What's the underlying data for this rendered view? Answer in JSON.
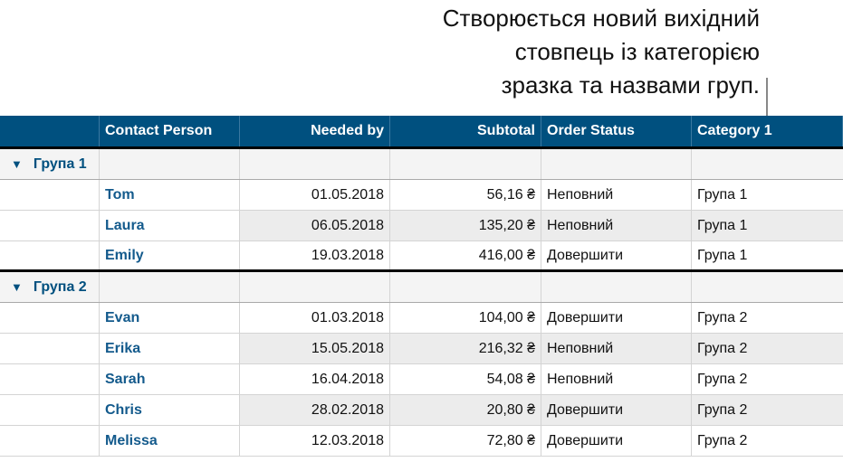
{
  "callout": {
    "lines": [
      "Створюється новий вихідний",
      "стовпець із категорією",
      "зразка та назвами груп."
    ]
  },
  "table": {
    "headers": [
      "",
      "Contact Person",
      "Needed by",
      "Subtotal",
      "Order Status",
      "Category 1"
    ],
    "groups": [
      {
        "label": "Група 1",
        "rows": [
          [
            "Tom",
            "01.05.2018",
            "56,16 ₴",
            "Неповний",
            "Група 1"
          ],
          [
            "Laura",
            "06.05.2018",
            "135,20 ₴",
            "Неповний",
            "Група 1"
          ],
          [
            "Emily",
            "19.03.2018",
            "416,00 ₴",
            "Довершити",
            "Група 1"
          ]
        ]
      },
      {
        "label": "Група 2",
        "rows": [
          [
            "Evan",
            "01.03.2018",
            "104,00 ₴",
            "Довершити",
            "Група 2"
          ],
          [
            "Erika",
            "15.05.2018",
            "216,32 ₴",
            "Неповний",
            "Група 2"
          ],
          [
            "Sarah",
            "16.04.2018",
            "54,08 ₴",
            "Неповний",
            "Група 2"
          ],
          [
            "Chris",
            "28.02.2018",
            "20,80 ₴",
            "Довершити",
            "Група 2"
          ],
          [
            "Melissa",
            "12.03.2018",
            "72,80 ₴",
            "Довершити",
            "Група 2"
          ]
        ]
      }
    ]
  },
  "colors": {
    "header": "#00507f",
    "name": "#135a8c"
  }
}
